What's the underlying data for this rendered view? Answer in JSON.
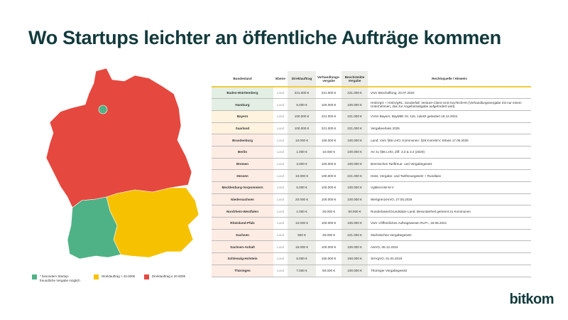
{
  "title": "Wo Startups leichter an öffentliche Aufträge kommen",
  "colors": {
    "green": "#4fb286",
    "yellow": "#f6c200",
    "red": "#e5483f",
    "accent_line": "#f2cc3b"
  },
  "legend": [
    {
      "label": "* besonders Startup-freundliche Vergabe möglich",
      "color": "#4fb286"
    },
    {
      "label": "Direktauftrag > 20.000€",
      "color": "#f6c200"
    },
    {
      "label": "Direktauftrag ≤ 20.000€",
      "color": "#e5483f"
    }
  ],
  "table": {
    "headers": [
      "Bundesland",
      "Ebene",
      "Direktauftrag",
      "Verhandlungs-vergabe",
      "Beschränkte Vergabe",
      "Rechtsquelle / Hinweis"
    ],
    "rows": [
      {
        "cat": "g",
        "land": "Baden-Württemberg",
        "ebene": "Land",
        "direkt": "221.000 €",
        "verhandlung": "221.000 €",
        "beschraenkt": "221.000 €",
        "quelle": "VwV Beschaffung, 23.07.2024"
      },
      {
        "cat": "g",
        "land": "Hamburg",
        "ebene": "Land",
        "direkt": "5.000 €",
        "verhandlung": "100.000 €",
        "beschraenkt": "100.000 €",
        "quelle": "HmbVgG + HmbVgRL; Sonderfall: Venture-Client-Unit GovTechHH (Verhandlungsvergabe mit nur einem Unternehmen, das zur Angebotsabgabe aufgefordert wird)"
      },
      {
        "cat": "y",
        "land": "Bayern",
        "ebene": "Land",
        "direkt": "100.000 €",
        "verhandlung": "221.000 €",
        "beschraenkt": "221.000 €",
        "quelle": "VVöA Bayern, BayMBl. Nr. 115, zuletzt geändert 18.12.2024"
      },
      {
        "cat": "y",
        "land": "Saarland",
        "ebene": "Land",
        "direkt": "100.000 €",
        "verhandlung": "221.000 €",
        "beschraenkt": "221.000 €",
        "quelle": "Vergabeerlass 2025"
      },
      {
        "cat": "r",
        "land": "Brandenburg",
        "ebene": "Land",
        "direkt": "10.000 €",
        "verhandlung": "100.000 €",
        "beschraenkt": "100.000 €",
        "quelle": "Land: VwV §55 LHO; Kommunen: §28 KomHKV; Erlass 17.06.2025"
      },
      {
        "cat": "r",
        "land": "Berlin",
        "ebene": "Land",
        "direkt": "1.000 €",
        "verhandlung": "10.000 €",
        "beschraenkt": "100.000 €",
        "quelle": "AV zu §55 LHO, Ziff. 3.3 & 3.4 (2020)"
      },
      {
        "cat": "r",
        "land": "Bremen",
        "ebene": "Land",
        "direkt": "3.000 €",
        "verhandlung": "100.000 €",
        "beschraenkt": "100.000 €",
        "quelle": "Bremisches Tariftreue- und Vergabegesetz"
      },
      {
        "cat": "r",
        "land": "Hessen",
        "ebene": "Land",
        "direkt": "10.000 €",
        "verhandlung": "100.000 €",
        "beschraenkt": "221.000 €",
        "quelle": "Hess. Vergabe- und Tariftreuegesetz + Rundlass"
      },
      {
        "cat": "r",
        "land": "Mecklenburg-Vorpommern",
        "ebene": "Land",
        "direkt": "5.000 €",
        "verhandlung": "100.000 €",
        "beschraenkt": "100.000 €",
        "quelle": "VgMinAnW M-V"
      },
      {
        "cat": "r",
        "land": "Niedersachsen",
        "ebene": "Land",
        "direkt": "20.000 €",
        "verhandlung": "100.000 €",
        "beschraenkt": "100.000 €",
        "quelle": "WertgrenzenVO, 27.05.2025"
      },
      {
        "cat": "r",
        "land": "Nordrhein-Westfalen",
        "ebene": "Land",
        "direkt": "1.000 €",
        "verhandlung": "25.000 €",
        "beschraenkt": "50.000 €",
        "quelle": "Runderlasse/Grundsätze Land; Besonderheit getrennt zu Kommunen"
      },
      {
        "cat": "r",
        "land": "Rheinland-Pfalz",
        "ebene": "Land",
        "direkt": "10.000 €",
        "verhandlung": "100.000 €",
        "beschraenkt": "100.000 €",
        "quelle": "VwV »Öffentliches Auftragswesen RLP«, 18.08.2021"
      },
      {
        "cat": "r",
        "land": "Sachsen",
        "ebene": "Land",
        "direkt": "500 €",
        "verhandlung": "25.000 €",
        "beschraenkt": "221.000 €",
        "quelle": "Sächsisches Vergabegesetz"
      },
      {
        "cat": "r",
        "land": "Sachsen-Anhalt",
        "ebene": "Land",
        "direkt": "15.000 €",
        "verhandlung": "100.000 €",
        "beschraenkt": "100.000 €",
        "quelle": "AwVO, 06.12.2024"
      },
      {
        "cat": "r",
        "land": "Schleswig-Holstein",
        "ebene": "Land",
        "direkt": "5.000 €",
        "verhandlung": "150.000 €",
        "beschraenkt": "150.000 €",
        "quelle": "SHVgVO, 01.04.2019"
      },
      {
        "cat": "r",
        "land": "Thüringen",
        "ebene": "Land",
        "direkt": "7.000 €",
        "verhandlung": "50.000 €",
        "beschraenkt": "100.000 €",
        "quelle": "Thüringer Vergabegesetz"
      }
    ]
  },
  "logo": "bitkom"
}
